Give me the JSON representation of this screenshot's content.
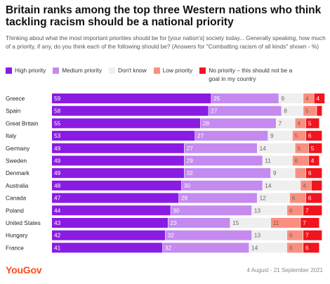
{
  "title": "Britain ranks among the top three Western nations who think tackling racism should be a national priority",
  "subtitle": "Thinking about what the most important priorities should be for [your nation's] society today... Generally speaking, how much of a priority, if any, do you think each of the following should be? (Answers for \"Combatting racism of all kinds\" shown - %)",
  "footer": {
    "brand": "YouGov",
    "dates": "4 August - 21 September 2021"
  },
  "chart_data": {
    "type": "bar",
    "stacked": true,
    "orientation": "horizontal",
    "categories": [
      "Greece",
      "Spain",
      "Great Britain",
      "Italy",
      "Germany",
      "Sweden",
      "Denmark",
      "Australia",
      "Canada",
      "Poland",
      "United States",
      "Hungary",
      "France"
    ],
    "series": [
      {
        "name": "High priority",
        "color": "#8a1be3",
        "label_color": "#ffffff",
        "values": [
          59,
          58,
          55,
          53,
          49,
          49,
          49,
          48,
          47,
          44,
          43,
          42,
          41
        ]
      },
      {
        "name": "Medium priority",
        "color": "#c48af0",
        "label_color": "#ffffff",
        "values": [
          25,
          27,
          28,
          27,
          27,
          29,
          32,
          30,
          29,
          30,
          23,
          32,
          32
        ]
      },
      {
        "name": "Don't know",
        "color": "#efefef",
        "label_color": "#666666",
        "values": [
          9,
          8,
          7,
          9,
          14,
          11,
          9,
          14,
          12,
          13,
          15,
          13,
          14
        ]
      },
      {
        "name": "Low priority",
        "color": "#fa8f7f",
        "label_color": "#666666",
        "values": [
          4,
          5,
          4,
          5,
          5,
          6,
          4,
          4,
          6,
          6,
          11,
          6,
          6
        ]
      },
      {
        "name": "No priority – this should not be a goal in my country",
        "color": "#f0141e",
        "label_color": "#ffffff",
        "values": [
          4,
          2,
          5,
          6,
          5,
          4,
          6,
          4,
          6,
          7,
          7,
          7,
          6
        ]
      }
    ],
    "value_labels": [
      [
        59,
        25,
        9,
        4,
        4
      ],
      [
        58,
        27,
        8,
        5,
        null
      ],
      [
        55,
        28,
        7,
        4,
        5
      ],
      [
        53,
        27,
        9,
        5,
        6
      ],
      [
        49,
        27,
        14,
        5,
        5
      ],
      [
        49,
        29,
        11,
        6,
        4
      ],
      [
        49,
        32,
        9,
        null,
        6
      ],
      [
        48,
        30,
        14,
        4,
        null
      ],
      [
        47,
        29,
        12,
        6,
        6
      ],
      [
        44,
        30,
        13,
        6,
        7
      ],
      [
        43,
        23,
        15,
        11,
        7
      ],
      [
        42,
        32,
        13,
        6,
        7
      ],
      [
        41,
        32,
        14,
        6,
        6
      ]
    ],
    "xlim": [
      0,
      100
    ],
    "legend_position": "top",
    "grid": false
  }
}
